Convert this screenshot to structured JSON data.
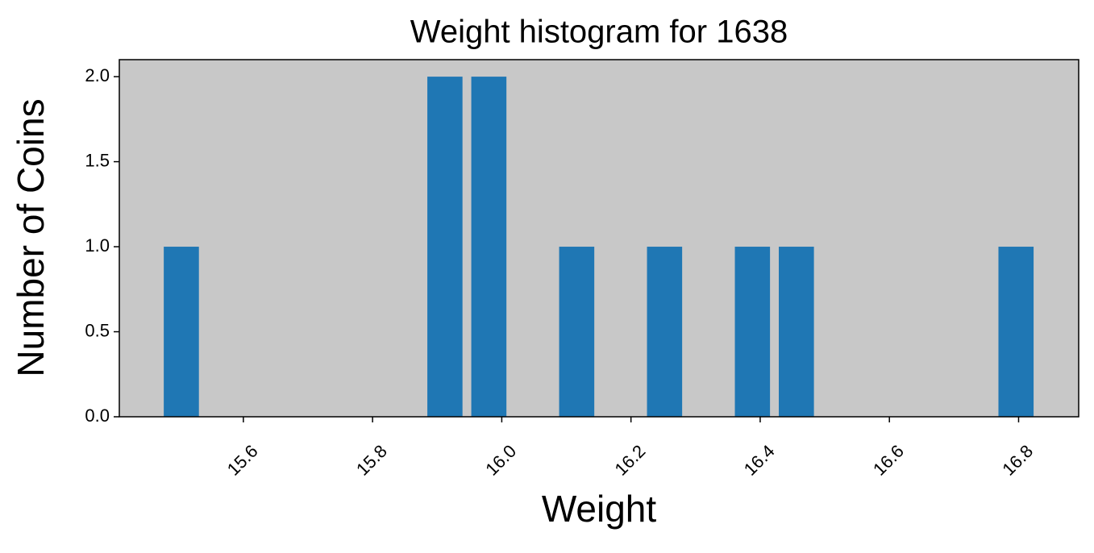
{
  "chart_data": {
    "type": "histogram",
    "title": "Weight histogram for 1638",
    "x_label": "Weight",
    "y_label": "Number of Coins",
    "bins": [
      15.47,
      15.538,
      15.606,
      15.674,
      15.742,
      15.81,
      15.878,
      15.946,
      16.014,
      16.082,
      16.15,
      16.218,
      16.286,
      16.354,
      16.422,
      16.49,
      16.558,
      16.626,
      16.694,
      16.762,
      16.83
    ],
    "counts": [
      1,
      0,
      0,
      0,
      0,
      0,
      2,
      2,
      0,
      1,
      0,
      1,
      0,
      1,
      1,
      0,
      0,
      0,
      0,
      1
    ],
    "color": "#1f77b4",
    "background": "#c8c8c8",
    "xlim": [
      15.408,
      16.893
    ],
    "xticks": [
      15.6,
      15.8,
      {
        "value": 16,
        "label": "16.0"
      },
      16.2,
      16.4,
      16.6,
      16.8
    ],
    "ylim": [
      0,
      2.1
    ],
    "yticks": [
      {
        "value": 0,
        "label": "0.0"
      },
      0.5,
      {
        "value": 1,
        "label": "1.0"
      },
      1.5,
      {
        "value": 2,
        "label": "2.0"
      }
    ],
    "grid": false
  }
}
